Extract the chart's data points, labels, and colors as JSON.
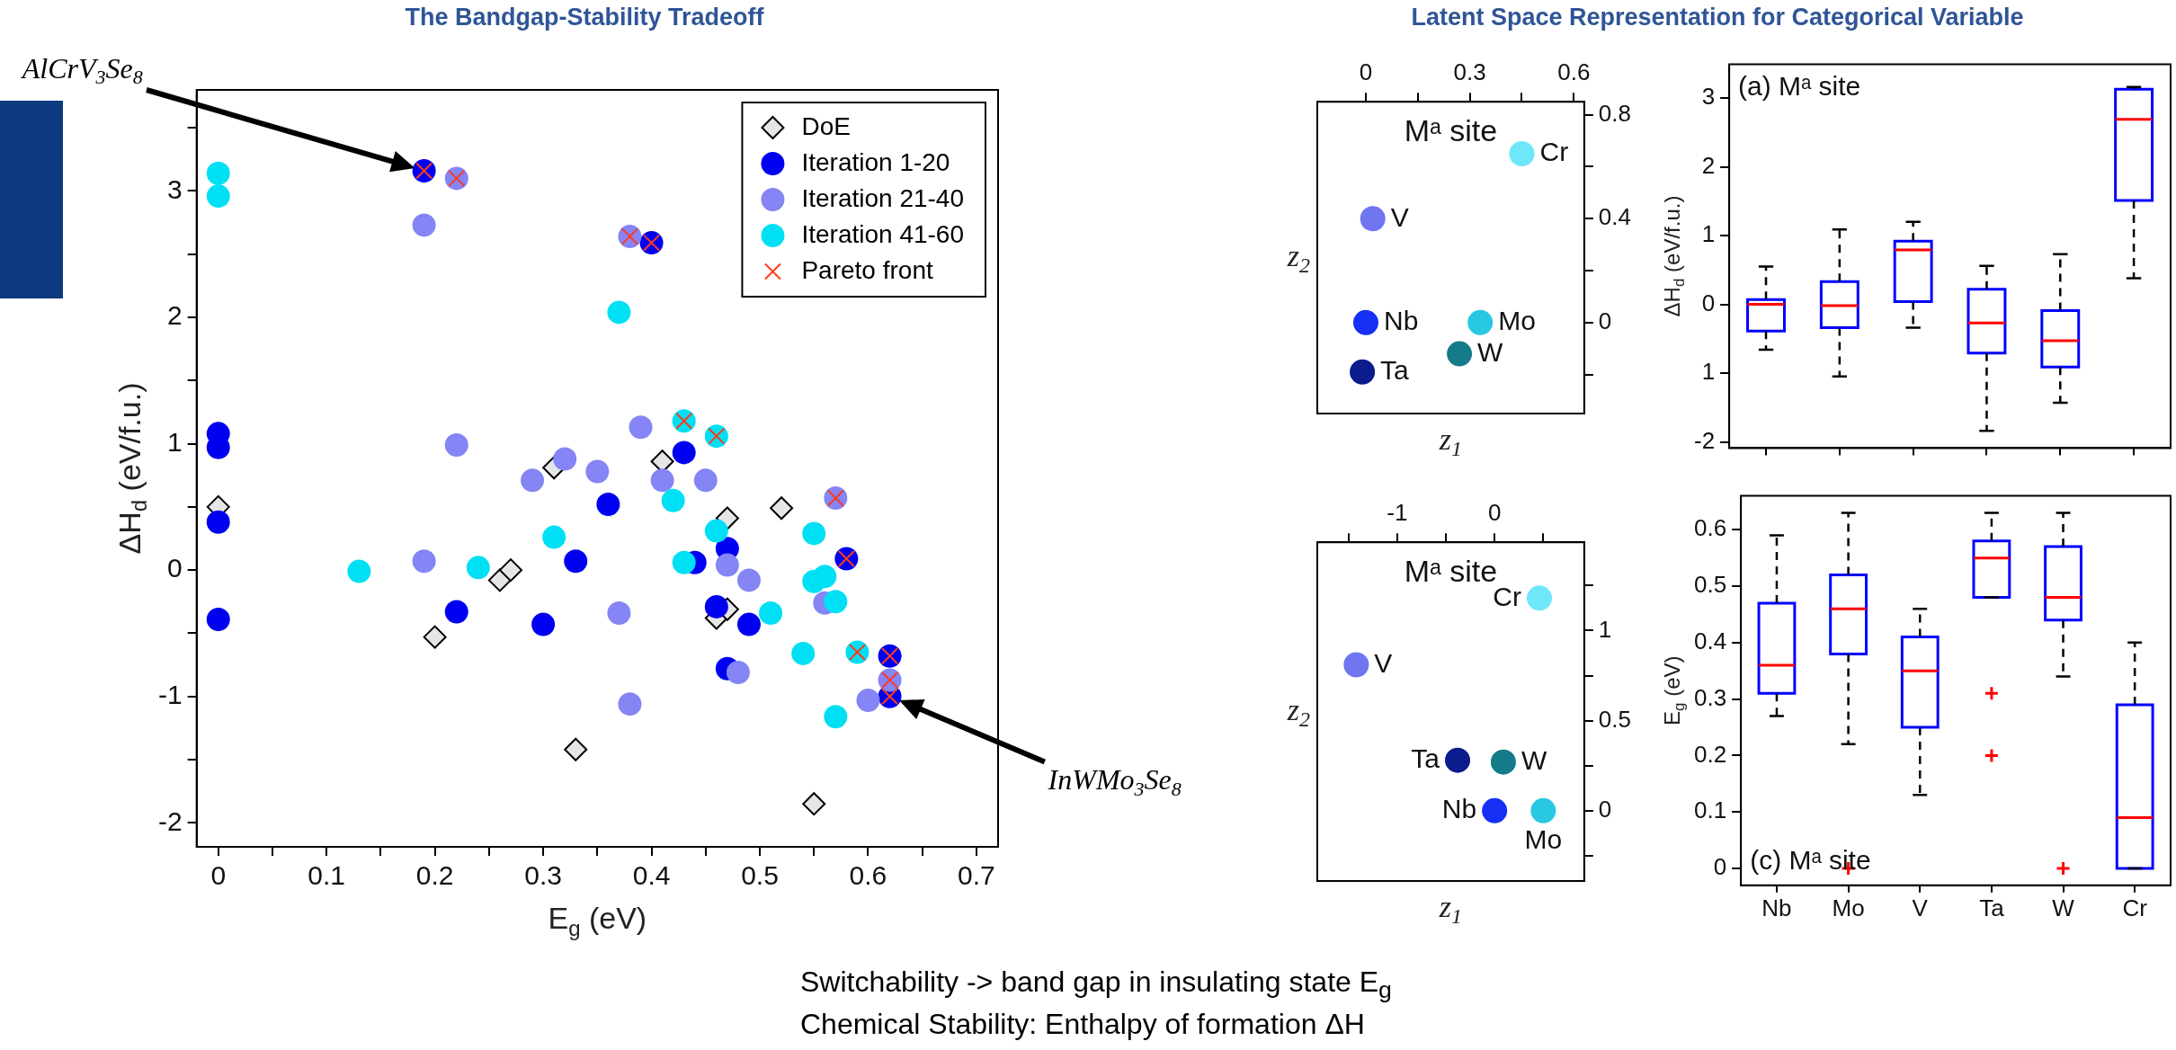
{
  "chart_data": [
    {
      "type": "scatter",
      "title": "The Bandgap-Stability Tradeoff",
      "xlabel": "E$_{g}$ (eV)",
      "ylabel": "ΔH$_{d}$ (eV/f.u.)",
      "xlim": [
        -0.02,
        0.72
      ],
      "ylim": [
        -2.19,
        3.8
      ],
      "xticks": [
        0,
        {
          "value": 0.05,
          "label": null
        },
        0.1,
        {
          "value": 0.15,
          "label": null
        },
        0.2,
        {
          "value": 0.25,
          "label": null
        },
        0.3,
        {
          "value": 0.35,
          "label": null
        },
        0.4,
        {
          "value": 0.45,
          "label": null
        },
        0.5,
        {
          "value": 0.55,
          "label": null
        },
        0.6,
        {
          "value": 0.65,
          "label": null
        },
        0.7
      ],
      "yticks": [
        -2,
        {
          "value": -1.5,
          "label": null
        },
        -1,
        {
          "value": -0.5,
          "label": null
        },
        0,
        {
          "value": 0.5,
          "label": null
        },
        1,
        {
          "value": 1.5,
          "label": null
        },
        2,
        {
          "value": 2.5,
          "label": null
        },
        3,
        {
          "value": 3.5,
          "label": null
        }
      ],
      "grid": false,
      "legend": "top right",
      "annotations": [
        "AlCrV$_{3}$Se$_{8}$",
        "InWMo$_{3}$Se$_{8}$",
        "Switchability -> band gap in insulating state E$_{g}$",
        "Chemical Stability: Enthalpy of formation ΔH"
      ],
      "series": [
        {
          "name": "DoE",
          "color": "#e6e6e6",
          "marker": "diamond",
          "x": [
            0,
            0.2,
            0.26,
            0.27,
            0.31,
            0.33,
            0.41,
            0.47,
            0.46,
            0.47,
            0.52,
            0.55
          ],
          "values": [
            0.5,
            -0.53,
            -0.08,
            0.0,
            0.81,
            -1.42,
            0.86,
            0.41,
            -0.38,
            -0.31,
            0.49,
            -1.85
          ]
        },
        {
          "name": "Iteration 1-20",
          "color": "#0000f0",
          "marker": "circle",
          "x": [
            0,
            0,
            0,
            0,
            0.22,
            0.3,
            0.33,
            0.36,
            0.43,
            0.44,
            0.47,
            0.46,
            0.49,
            0.47,
            0.19,
            0.4,
            0.58,
            0.62,
            0.62
          ],
          "values": [
            1.08,
            0.97,
            0.38,
            -0.39,
            -0.33,
            -0.43,
            0.07,
            0.52,
            0.93,
            0.06,
            0.17,
            -0.29,
            -0.43,
            -0.78,
            3.16,
            2.59,
            0.09,
            -0.68,
            -1.0
          ]
        },
        {
          "name": "Iteration 21-40",
          "color": "#8585f5",
          "marker": "circle",
          "x": [
            0.19,
            0.22,
            0.19,
            0.29,
            0.32,
            0.35,
            0.39,
            0.37,
            0.38,
            0.41,
            0.45,
            0.47,
            0.49,
            0.56,
            0.48,
            0.6,
            0.22,
            0.38,
            0.57,
            0.62
          ],
          "values": [
            2.73,
            0.99,
            0.07,
            0.71,
            0.88,
            0.78,
            1.13,
            -0.34,
            -1.06,
            0.71,
            0.71,
            0.04,
            -0.08,
            -0.26,
            -0.81,
            -1.03,
            3.1,
            2.64,
            0.57,
            -0.87
          ]
        },
        {
          "name": "Iteration 41-60",
          "color": "#00e0f5",
          "marker": "circle",
          "x": [
            0,
            0,
            0.13,
            0.24,
            0.31,
            0.37,
            0.42,
            0.46,
            0.55,
            0.43,
            0.55,
            0.56,
            0.57,
            0.51,
            0.54,
            0.57,
            0.43,
            0.46,
            0.59
          ],
          "values": [
            3.14,
            2.96,
            -0.01,
            0.02,
            0.26,
            2.04,
            0.55,
            0.31,
            0.29,
            0.06,
            -0.09,
            -0.05,
            -0.25,
            -0.34,
            -0.66,
            -1.16,
            1.18,
            1.06,
            -0.65
          ]
        },
        {
          "name": "Pareto front",
          "color": "#ff3b1a",
          "marker": "cross",
          "x": [
            0.19,
            0.22,
            0.38,
            0.4,
            0.43,
            0.46,
            0.57,
            0.58,
            0.59,
            0.62,
            0.62,
            0.62
          ],
          "values": [
            3.16,
            3.1,
            2.64,
            2.59,
            1.18,
            1.06,
            0.57,
            0.09,
            -0.65,
            -0.68,
            -0.87,
            -1.0
          ]
        }
      ]
    },
    {
      "type": "scatter",
      "title": "Latent Space Representation for Categorical Variable",
      "xlabel": "z$_{1}$",
      "ylabel": "z$_{2}$",
      "xlim": [
        -0.14,
        0.63
      ],
      "ylim": [
        -0.35,
        0.85
      ],
      "xticks": [
        0,
        {
          "value": 0.15,
          "label": null
        },
        0.3,
        {
          "value": 0.45,
          "label": null
        },
        0.6
      ],
      "yticks": [
        {
          "value": -0.2,
          "label": null
        },
        0,
        {
          "value": 0.2,
          "label": null
        },
        0.4,
        {
          "value": 0.6,
          "label": null
        },
        0.8
      ],
      "grid": false,
      "marker": "circle",
      "annotations": [
        "Mᵃ site"
      ],
      "series": [
        {
          "name": "Cr",
          "color": "#6ee8f8",
          "x": [
            0.45
          ],
          "values": [
            0.65
          ]
        },
        {
          "name": "V",
          "color": "#7075f0",
          "x": [
            0.02
          ],
          "values": [
            0.4
          ]
        },
        {
          "name": "Nb",
          "color": "#1630f5",
          "x": [
            0
          ],
          "values": [
            0
          ]
        },
        {
          "name": "Mo",
          "color": "#28c8e2",
          "x": [
            0.33
          ],
          "values": [
            0
          ]
        },
        {
          "name": "W",
          "color": "#157b8a",
          "x": [
            0.27
          ],
          "values": [
            -0.12
          ]
        },
        {
          "name": "Ta",
          "color": "#0b1c8c",
          "x": [
            -0.01
          ],
          "values": [
            -0.19
          ]
        }
      ]
    },
    {
      "type": "scatter",
      "xlabel": "z$_{1}$",
      "ylabel": "z$_{2}$",
      "xlim": [
        -1.82,
        0.92
      ],
      "ylim": [
        -0.39,
        1.49
      ],
      "xticks": [
        {
          "value": -1.5,
          "label": null
        },
        -1,
        {
          "value": -0.5,
          "label": null
        },
        0,
        {
          "value": 0.5,
          "label": null
        }
      ],
      "yticks": [
        {
          "value": -0.25,
          "label": null
        },
        0,
        {
          "value": 0.25,
          "label": null
        },
        0.5,
        {
          "value": 0.75,
          "label": null
        },
        1,
        {
          "value": 1.25,
          "label": null
        }
      ],
      "grid": false,
      "marker": "circle",
      "annotations": [
        "Mᵃ site"
      ],
      "series": [
        {
          "name": "Cr",
          "color": "#6ee8f8",
          "x": [
            0.46
          ],
          "values": [
            1.18
          ]
        },
        {
          "name": "V",
          "color": "#7075f0",
          "x": [
            -1.42
          ],
          "values": [
            0.81
          ]
        },
        {
          "name": "Ta",
          "color": "#0b1c8c",
          "x": [
            -0.38
          ],
          "values": [
            0.28
          ]
        },
        {
          "name": "W",
          "color": "#157b8a",
          "x": [
            0.09
          ],
          "values": [
            0.27
          ]
        },
        {
          "name": "Nb",
          "color": "#1630f5",
          "x": [
            0
          ],
          "values": [
            0
          ]
        },
        {
          "name": "Mo",
          "color": "#28c8e2",
          "x": [
            0.5
          ],
          "values": [
            0
          ]
        }
      ]
    },
    {
      "type": "box",
      "ylabel": "ΔH$_{d}$ (eV/f.u.)",
      "categories": [
        null,
        null,
        null,
        null,
        null,
        null
      ],
      "ylim": [
        -2.09,
        3.49
      ],
      "yticks": [
        3,
        2,
        1,
        0,
        {
          "value": -1,
          "label": "1"
        },
        -2
      ],
      "tick_labels": "y",
      "grid": false,
      "annotations": [
        "(a) Mᵃ site"
      ],
      "series": [
        {
          "color": "#0000ff",
          "boxes": [
            {
              "low": -0.66,
              "q1": -0.39,
              "median": 0.0,
              "q3": 0.07,
              "high": 0.55
            },
            {
              "low": -1.05,
              "q1": -0.34,
              "median": -0.02,
              "q3": 0.33,
              "high": 1.09
            },
            {
              "low": -0.34,
              "q1": 0.04,
              "median": 0.79,
              "q3": 0.92,
              "high": 1.2
            },
            {
              "low": -1.84,
              "q1": -0.71,
              "median": -0.27,
              "q3": 0.22,
              "high": 0.56
            },
            {
              "low": -1.43,
              "q1": -0.91,
              "median": -0.53,
              "q3": -0.09,
              "high": 0.73
            },
            {
              "low": 0.38,
              "q1": 1.51,
              "median": 2.69,
              "q3": 3.13,
              "high": 3.16
            }
          ]
        }
      ]
    },
    {
      "type": "box",
      "ylabel": "E$_{g}$ (eV)",
      "categories": [
        "Nb",
        "Mo",
        "V",
        "Ta",
        "W",
        "Cr"
      ],
      "ylim": [
        -0.03,
        0.66
      ],
      "yticks": [
        0,
        0.1,
        0.2,
        0.3,
        0.4,
        0.5,
        0.6
      ],
      "grid": false,
      "annotations": [
        "(c) Mᵃ site"
      ],
      "series": [
        {
          "color": "#0000ff",
          "boxes": [
            {
              "low": 0.27,
              "q1": 0.31,
              "median": 0.36,
              "q3": 0.47,
              "high": 0.59
            },
            {
              "low": 0.22,
              "q1": 0.38,
              "median": 0.46,
              "q3": 0.52,
              "high": 0.63,
              "outliers": [
                0
              ]
            },
            {
              "low": 0.13,
              "q1": 0.25,
              "median": 0.35,
              "q3": 0.41,
              "high": 0.46
            },
            {
              "low": 0.48,
              "q1": 0.48,
              "median": 0.55,
              "q3": 0.58,
              "high": 0.63,
              "outliers": [
                0.31,
                0.2
              ]
            },
            {
              "low": 0.34,
              "q1": 0.44,
              "median": 0.48,
              "q3": 0.57,
              "high": 0.63,
              "outliers": [
                0
              ]
            },
            {
              "low": 0,
              "q1": 0,
              "median": 0.09,
              "q3": 0.29,
              "high": 0.4
            }
          ]
        }
      ]
    }
  ]
}
